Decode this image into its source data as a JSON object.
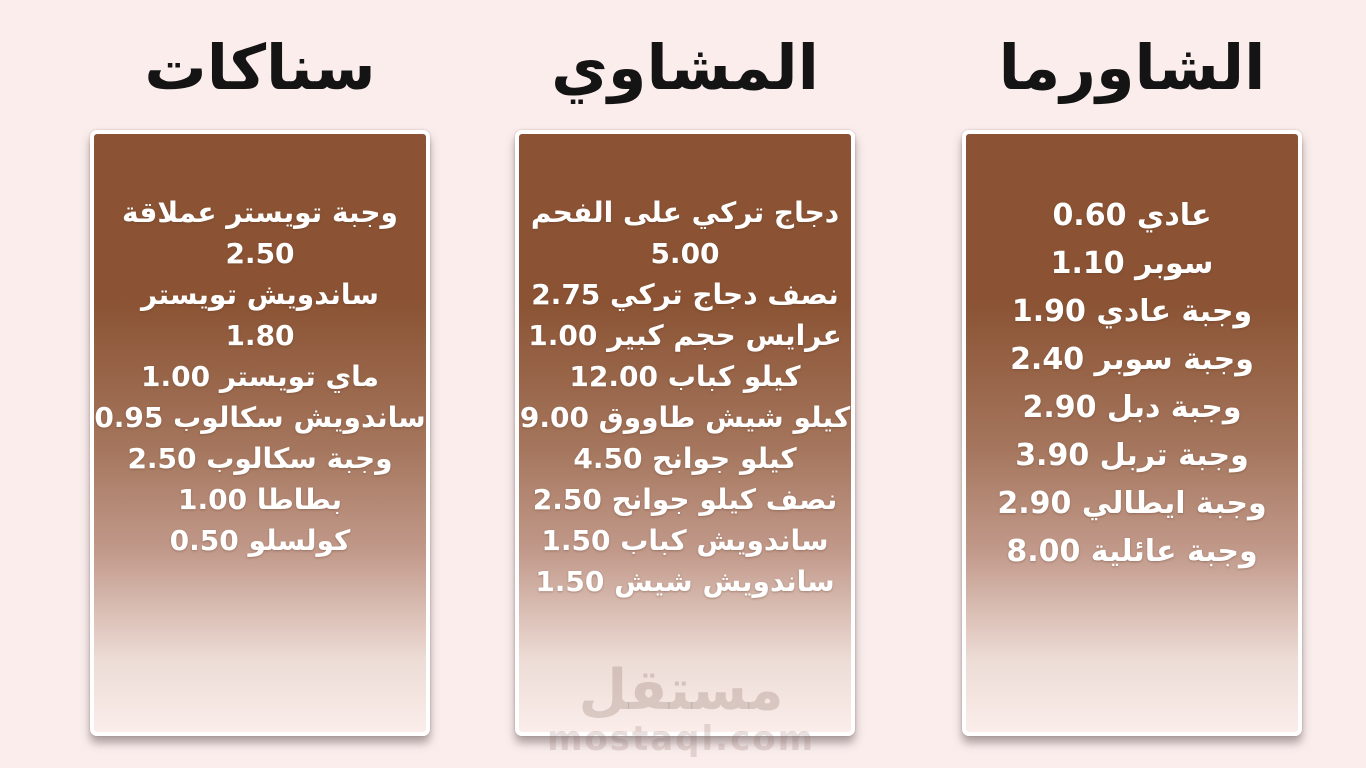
{
  "page": {
    "background_color": "#faedec",
    "card_top_color": "#8b5334",
    "card_bottom_color": "#faedea",
    "card_border_color": "#ffffff",
    "title_color": "#141414",
    "item_text_color": "#ffffff"
  },
  "sections": [
    {
      "id": "shawarma",
      "title": "الشاورما",
      "lines": [
        "عادي 0.60",
        "سوبر 1.10",
        "وجبة عادي 1.90",
        "وجبة سوبر 2.40",
        "وجبة دبل 2.90",
        "وجبة تربل 3.90",
        "وجبة ايطالي 2.90",
        "وجبة عائلية 8.00"
      ]
    },
    {
      "id": "grills",
      "title": "المشاوي",
      "lines": [
        "دجاج تركي على الفحم",
        "5.00",
        "نصف دجاج تركي 2.75",
        "عرايس حجم كبير 1.00",
        "كيلو كباب 12.00",
        "كيلو شيش طاووق 9.00",
        "كيلو جوانح 4.50",
        "نصف كيلو جوانح 2.50",
        "ساندويش كباب 1.50",
        "ساندويش شيش 1.50"
      ]
    },
    {
      "id": "snacks",
      "title": "سناكات",
      "lines": [
        "وجبة تويستر عملاقة",
        "2.50",
        "ساندويش تويستر",
        "1.80",
        "ماي تويستر 1.00",
        "ساندويش سكالوب 0.95",
        "وجبة سكالوب 2.50",
        "بطاطا 1.00",
        "كولسلو 0.50"
      ]
    }
  ],
  "watermark": {
    "arabic": "مستقل",
    "latin": "mostaql.com"
  }
}
